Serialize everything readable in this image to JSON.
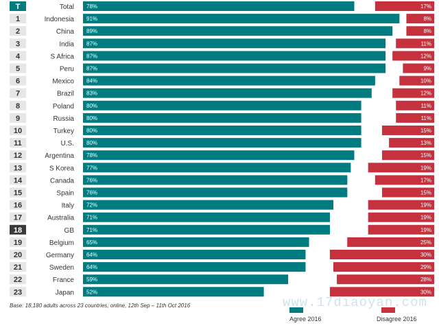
{
  "chart_data": {
    "type": "bar",
    "categories": [
      "Total",
      "Indonesia",
      "China",
      "India",
      "S Africa",
      "Peru",
      "Mexico",
      "Brazil",
      "Poland",
      "Russia",
      "Turkey",
      "U.S.",
      "Argentina",
      "S Korea",
      "Canada",
      "Spain",
      "Italy",
      "Australia",
      "GB",
      "Belgium",
      "Germany",
      "Sweden",
      "France",
      "Japan"
    ],
    "ranks": [
      "T",
      "1",
      "2",
      "3",
      "4",
      "5",
      "6",
      "7",
      "8",
      "9",
      "10",
      "11",
      "12",
      "13",
      "14",
      "15",
      "16",
      "17",
      "18",
      "19",
      "20",
      "21",
      "22",
      "23"
    ],
    "highlighted_rank": "18",
    "series": [
      {
        "name": "Agree 2016",
        "color": "#007c80",
        "values": [
          78,
          91,
          89,
          87,
          87,
          87,
          84,
          83,
          80,
          80,
          80,
          80,
          78,
          77,
          76,
          76,
          72,
          71,
          71,
          65,
          64,
          64,
          59,
          52
        ],
        "labels": [
          "78%",
          "91%",
          "89%",
          "87%",
          "87%",
          "87%",
          "84%",
          "83%",
          "80%",
          "80%",
          "80%",
          "80%",
          "78%",
          "77%",
          "76%",
          "76%",
          "72%",
          "71%",
          "71%",
          "65%",
          "64%",
          "64%",
          "59%",
          "52%"
        ]
      },
      {
        "name": "Disagree 2016",
        "color": "#c5323e",
        "values": [
          17,
          8,
          8,
          11,
          12,
          9,
          10,
          12,
          11,
          11,
          15,
          13,
          15,
          19,
          17,
          15,
          19,
          19,
          19,
          25,
          30,
          29,
          28,
          30
        ],
        "labels": [
          "17%",
          "8%",
          "8%",
          "11%",
          "12%",
          "9%",
          "10%",
          "12%",
          "11%",
          "11%",
          "15%",
          "13%",
          "15%",
          "19%",
          "17%",
          "15%",
          "19%",
          "19%",
          "19%",
          "25%",
          "30%",
          "29%",
          "28%",
          "30%"
        ]
      }
    ],
    "xlim": [
      0,
      100
    ],
    "legend": "bottom-right"
  },
  "footnote": "Base: 18,180 adults across 23 countries, online, 12th Sep – 11th Oct 2016",
  "legend": {
    "agree_label": "Agree 2016",
    "disagree_label": "Disagree 2016"
  },
  "watermark": "www.17diaoyan.com"
}
